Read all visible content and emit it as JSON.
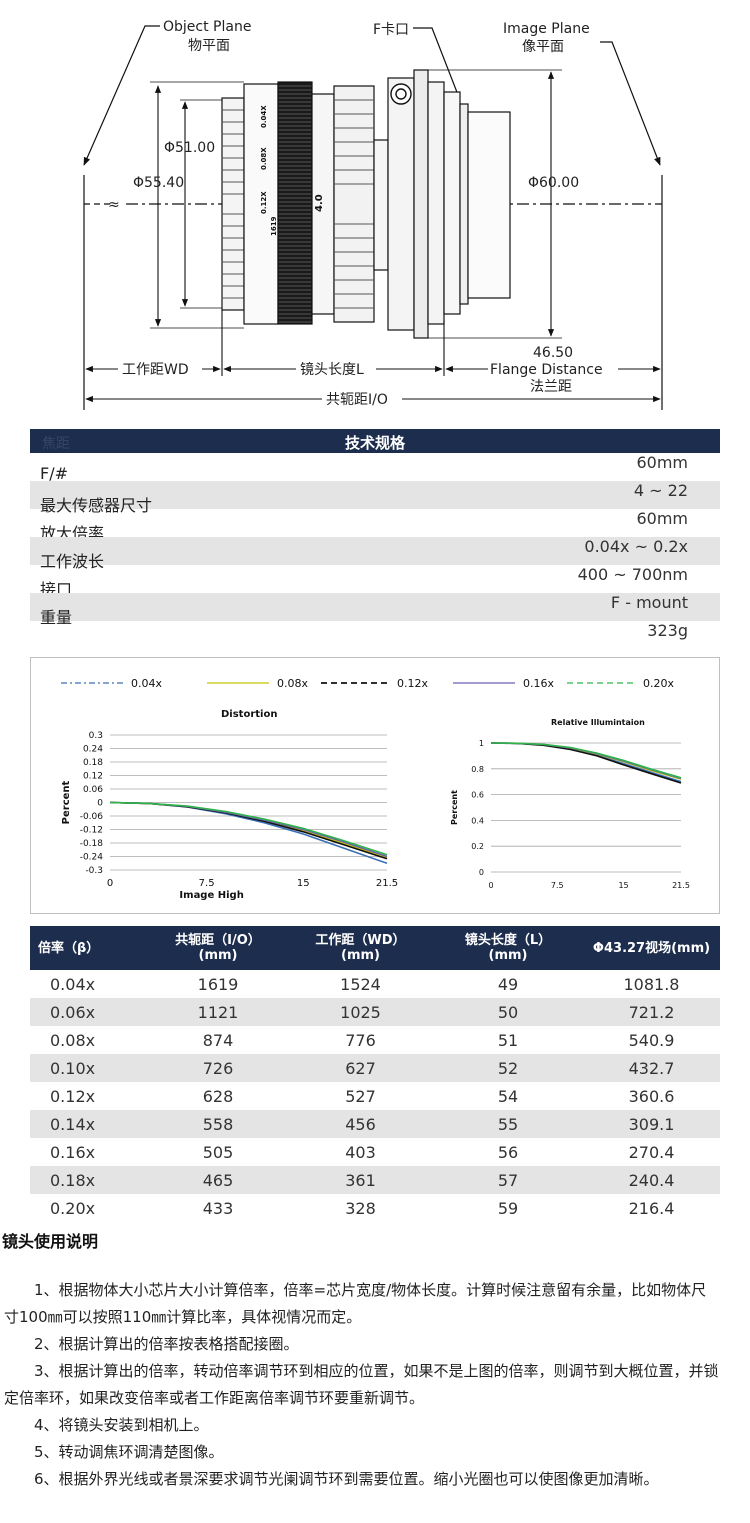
{
  "drawing": {
    "object_plane_en": "Object Plane",
    "object_plane_cn": "物平面",
    "f_mount": "F卡口",
    "image_plane_en": "Image Plane",
    "image_plane_cn": "像平面",
    "dia_51": "Φ51.00",
    "dia_55": "Φ55.40",
    "dia_60": "Φ60.00",
    "flange_value": "46.50",
    "wd_label": "工作距WD",
    "lens_length_label": "镜头长度L",
    "flange_en": "Flange Distance",
    "flange_cn": "法兰距",
    "io_label": "共轭距I/O",
    "ring_scale_1": "0.04X",
    "ring_scale_2": "0.08X",
    "ring_scale_3": "0.12X",
    "ring_scale_4": "1619",
    "ring_scale_5": "4.0"
  },
  "spec": {
    "faded_header": "焦距",
    "title": "技术规格",
    "rows": [
      {
        "label": "F/#",
        "value": "60mm"
      },
      {
        "label": "最大传感器尺寸",
        "value": "4 ~ 22"
      },
      {
        "label": "放大倍率",
        "value": "60mm"
      },
      {
        "label": "工作波长",
        "value": "0.04x ~ 0.2x"
      },
      {
        "label": "接口",
        "value": "400 ~ 700nm"
      },
      {
        "label": "重量",
        "value": "F - mount"
      },
      {
        "label": "",
        "value": "323g"
      }
    ]
  },
  "legend": [
    {
      "name": "0.04x",
      "color": "#3a6fb5",
      "style": "dashdot"
    },
    {
      "name": "0.08x",
      "color": "#c8c400",
      "style": "solid"
    },
    {
      "name": "0.12x",
      "color": "#111111",
      "style": "dashed"
    },
    {
      "name": "0.16x",
      "color": "#6b62b0",
      "style": "solid"
    },
    {
      "name": "0.20x",
      "color": "#2fb34a",
      "style": "dashed"
    }
  ],
  "chart_data": [
    {
      "type": "line",
      "title": "Distortion",
      "xlabel": "Image High",
      "ylabel": "Percent",
      "xlim": [
        0,
        21.5
      ],
      "ylim": [
        -0.3,
        0.3
      ],
      "xticks": [
        "0",
        "7.5",
        "15",
        "21.5"
      ],
      "yticks": [
        "0.3",
        "0.24",
        "0.18",
        "0.12",
        "0.06",
        "0",
        "-0.06",
        "-0.12",
        "-0.18",
        "-0.24",
        "-0.3"
      ],
      "x": [
        0,
        3,
        6,
        9,
        12,
        15,
        18,
        21.5
      ],
      "series": [
        {
          "name": "0.04x",
          "values": [
            0,
            -0.004,
            -0.02,
            -0.05,
            -0.09,
            -0.14,
            -0.2,
            -0.27
          ]
        },
        {
          "name": "0.08x",
          "values": [
            0,
            -0.004,
            -0.018,
            -0.045,
            -0.082,
            -0.127,
            -0.18,
            -0.245
          ]
        },
        {
          "name": "0.12x",
          "values": [
            0,
            -0.004,
            -0.019,
            -0.046,
            -0.084,
            -0.13,
            -0.185,
            -0.25
          ]
        },
        {
          "name": "0.16x",
          "values": [
            0,
            -0.004,
            -0.017,
            -0.043,
            -0.078,
            -0.12,
            -0.173,
            -0.24
          ]
        },
        {
          "name": "0.20x",
          "values": [
            0,
            -0.004,
            -0.016,
            -0.04,
            -0.074,
            -0.115,
            -0.167,
            -0.232
          ]
        }
      ]
    },
    {
      "type": "line",
      "title": "Relative Illumintaion",
      "xlabel": "",
      "ylabel": "Percent",
      "xlim": [
        0,
        21.5
      ],
      "ylim": [
        0,
        1
      ],
      "xticks": [
        "0",
        "7.5",
        "15",
        "21.5"
      ],
      "yticks": [
        "1",
        "0.8",
        "0.6",
        "0.4",
        "0.2",
        "0"
      ],
      "x": [
        0,
        3,
        6,
        9,
        12,
        15,
        18,
        21.5
      ],
      "series": [
        {
          "name": "0.04x",
          "values": [
            1,
            0.998,
            0.985,
            0.955,
            0.905,
            0.84,
            0.775,
            0.7
          ]
        },
        {
          "name": "0.08x",
          "values": [
            1,
            0.998,
            0.987,
            0.96,
            0.915,
            0.855,
            0.79,
            0.72
          ]
        },
        {
          "name": "0.12x",
          "values": [
            1,
            0.997,
            0.982,
            0.95,
            0.9,
            0.83,
            0.765,
            0.69
          ]
        },
        {
          "name": "0.16x",
          "values": [
            1,
            0.998,
            0.988,
            0.962,
            0.918,
            0.86,
            0.795,
            0.725
          ]
        },
        {
          "name": "0.20x",
          "values": [
            1,
            0.998,
            0.989,
            0.965,
            0.922,
            0.865,
            0.8,
            0.73
          ]
        }
      ]
    }
  ],
  "mag_table": {
    "headers": [
      [
        "倍率（β）",
        ""
      ],
      [
        "共轭距（I/O）",
        "(mm)"
      ],
      [
        "工作距（WD）",
        "(mm)"
      ],
      [
        "镜头长度（L）",
        "(mm)"
      ],
      [
        "Φ43.27视场(mm)",
        ""
      ]
    ],
    "rows": [
      [
        "0.04x",
        "1619",
        "1524",
        "49",
        "1081.8"
      ],
      [
        "0.06x",
        "1121",
        "1025",
        "50",
        "721.2"
      ],
      [
        "0.08x",
        "874",
        "776",
        "51",
        "540.9"
      ],
      [
        "0.10x",
        "726",
        "627",
        "52",
        "432.7"
      ],
      [
        "0.12x",
        "628",
        "527",
        "54",
        "360.6"
      ],
      [
        "0.14x",
        "558",
        "456",
        "55",
        "309.1"
      ],
      [
        "0.16x",
        "505",
        "403",
        "56",
        "270.4"
      ],
      [
        "0.18x",
        "465",
        "361",
        "57",
        "240.4"
      ],
      [
        "0.20x",
        "433",
        "328",
        "59",
        "216.4"
      ]
    ]
  },
  "usage": {
    "title": "镜头使用说明",
    "p1": "1、根据物体大小芯片大小计算倍率，倍率=芯片宽度/物体长度。计算时候注意留有余量，比如物体尺寸100㎜可以按照110㎜计算比率，具体视情况而定。",
    "p2": "2、根据计算出的倍率按表格搭配接圈。",
    "p3": "3、根据计算出的倍率，转动倍率调节环到相应的位置，如果不是上图的倍率，则调节到大概位置，并锁定倍率环，如果改变倍率或者工作距离倍率调节环要重新调节。",
    "p4": "4、将镜头安装到相机上。",
    "p5": "5、转动调焦环调清楚图像。",
    "p6": "6、根据外界光线或者景深要求调节光阑调节环到需要位置。缩小光圈也可以使图像更加清晰。"
  }
}
